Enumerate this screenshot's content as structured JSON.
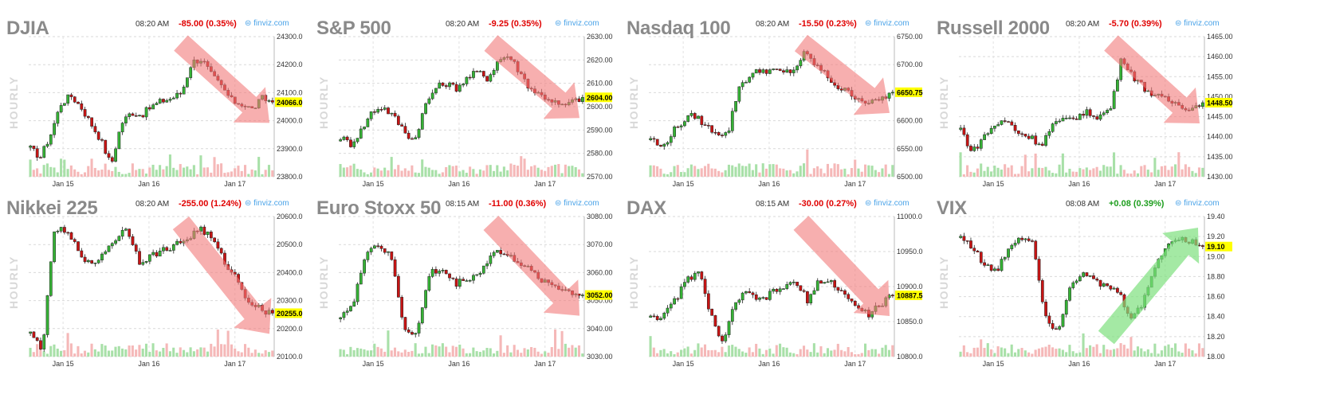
{
  "colors": {
    "up": "#35b235",
    "down": "#c81414",
    "down_arrow": "#f27a7a",
    "up_arrow": "#7ee07e",
    "last_highlight": "#ffff00",
    "change_down": "#e00000",
    "change_up": "#1e9e1e",
    "brand": "#4aa3e8"
  },
  "brand": "finviz.com",
  "vertical_label": "HOURLY",
  "charts": [
    {
      "title": "DJIA",
      "time": "08:20 AM",
      "change": "-85.00 (0.35%)",
      "direction": "down",
      "last": "24066.0",
      "chart_data": {
        "type": "candlestick",
        "x_labels": [
          "Jan 15",
          "Jan 16",
          "Jan 17"
        ],
        "y_ticks": [
          "24300.0",
          "24200.0",
          "24100.0",
          "24000.0",
          "23900.0",
          "23800.0"
        ],
        "ylim": [
          23800,
          24300
        ],
        "last_value": 24066,
        "trend_arrow": "down",
        "close_path": [
          23900,
          23870,
          23950,
          24060,
          24090,
          24050,
          23990,
          23930,
          23840,
          23990,
          24030,
          24020,
          24050,
          24070,
          24080,
          24100,
          24210,
          24220,
          24160,
          24120,
          24070,
          24060,
          24040,
          24080,
          24066
        ]
      }
    },
    {
      "title": "S&P 500",
      "time": "08:20 AM",
      "change": "-9.25 (0.35%)",
      "direction": "down",
      "last": "2604.00",
      "chart_data": {
        "type": "candlestick",
        "x_labels": [
          "Jan 15",
          "Jan 16",
          "Jan 17"
        ],
        "y_ticks": [
          "2630.00",
          "2620.00",
          "2610.00",
          "2600.00",
          "2590.00",
          "2580.00",
          "2570.00"
        ],
        "ylim": [
          2570,
          2630
        ],
        "last_value": 2604,
        "trend_arrow": "down",
        "close_path": [
          2587,
          2584,
          2590,
          2598,
          2600,
          2596,
          2590,
          2585,
          2600,
          2608,
          2610,
          2608,
          2612,
          2615,
          2612,
          2620,
          2622,
          2615,
          2608,
          2605,
          2603,
          2600,
          2602,
          2604
        ]
      }
    },
    {
      "title": "Nasdaq 100",
      "time": "08:20 AM",
      "change": "-15.50 (0.23%)",
      "direction": "down",
      "last": "6650.75",
      "chart_data": {
        "type": "candlestick",
        "x_labels": [
          "Jan 15",
          "Jan 16",
          "Jan 17"
        ],
        "y_ticks": [
          "6750.00",
          "6700.00",
          "6650.00",
          "6600.00",
          "6550.00",
          "6500.00"
        ],
        "ylim": [
          6500,
          6750
        ],
        "last_value": 6650.75,
        "trend_arrow": "down",
        "close_path": [
          6570,
          6550,
          6580,
          6600,
          6610,
          6590,
          6580,
          6575,
          6660,
          6680,
          6690,
          6690,
          6685,
          6690,
          6720,
          6700,
          6680,
          6660,
          6650,
          6640,
          6630,
          6640,
          6650.75
        ]
      }
    },
    {
      "title": "Russell 2000",
      "time": "08:20 AM",
      "change": "-5.70 (0.39%)",
      "direction": "down",
      "last": "1448.50",
      "chart_data": {
        "type": "candlestick",
        "x_labels": [
          "Jan 15",
          "Jan 16",
          "Jan 17"
        ],
        "y_ticks": [
          "1465.00",
          "1460.00",
          "1455.00",
          "1450.00",
          "1445.00",
          "1440.00",
          "1435.00",
          "1430.00"
        ],
        "ylim": [
          1430,
          1465
        ],
        "last_value": 1448.5,
        "trend_arrow": "down",
        "close_path": [
          1442,
          1436,
          1440,
          1443,
          1444,
          1441,
          1440,
          1438,
          1443,
          1444,
          1445,
          1446,
          1445,
          1447,
          1460,
          1455,
          1452,
          1450,
          1449,
          1448,
          1447,
          1448.5
        ]
      }
    },
    {
      "title": "Nikkei 225",
      "time": "08:20 AM",
      "change": "-255.00 (1.24%)",
      "direction": "down",
      "last": "20255.0",
      "chart_data": {
        "type": "candlestick",
        "x_labels": [
          "Jan 15",
          "Jan 16",
          "Jan 17"
        ],
        "y_ticks": [
          "20600.0",
          "20500.0",
          "20400.0",
          "20300.0",
          "20200.0",
          "20100.0"
        ],
        "ylim": [
          20100,
          20600
        ],
        "last_value": 20255,
        "trend_arrow": "down",
        "close_path": [
          20180,
          20130,
          20560,
          20540,
          20480,
          20420,
          20470,
          20520,
          20560,
          20440,
          20460,
          20480,
          20500,
          20520,
          20560,
          20520,
          20440,
          20380,
          20300,
          20270,
          20255
        ]
      }
    },
    {
      "title": "Euro Stoxx 50",
      "time": "08:15 AM",
      "change": "-11.00 (0.36%)",
      "direction": "down",
      "last": "3052.00",
      "chart_data": {
        "type": "candlestick",
        "x_labels": [
          "Jan 15",
          "Jan 16",
          "Jan 17"
        ],
        "y_ticks": [
          "3080.00",
          "3070.00",
          "3060.00",
          "3050.00",
          "3040.00",
          "3030.00"
        ],
        "ylim": [
          3030,
          3080
        ],
        "last_value": 3052,
        "trend_arrow": "down",
        "close_path": [
          3045,
          3048,
          3068,
          3070,
          3065,
          3040,
          3038,
          3060,
          3061,
          3056,
          3058,
          3060,
          3068,
          3066,
          3064,
          3060,
          3057,
          3055,
          3053,
          3052
        ]
      }
    },
    {
      "title": "DAX",
      "time": "08:15 AM",
      "change": "-30.00 (0.27%)",
      "direction": "down",
      "last": "10887.5",
      "chart_data": {
        "type": "candlestick",
        "x_labels": [
          "Jan 15",
          "Jan 16",
          "Jan 17"
        ],
        "y_ticks": [
          "11000.0",
          "10950.0",
          "10900.0",
          "10850.0",
          "10800.0"
        ],
        "ylim": [
          10800,
          11000
        ],
        "last_value": 10887.5,
        "trend_arrow": "down",
        "close_path": [
          10860,
          10855,
          10880,
          10910,
          10920,
          10860,
          10815,
          10880,
          10890,
          10880,
          10890,
          10900,
          10905,
          10880,
          10910,
          10905,
          10890,
          10870,
          10860,
          10875,
          10887.5
        ]
      }
    },
    {
      "title": "VIX",
      "time": "08:08 AM",
      "change": "+0.08 (0.39%)",
      "direction": "up",
      "last": "19.10",
      "chart_data": {
        "type": "candlestick",
        "x_labels": [
          "Jan 15",
          "Jan 16",
          "Jan 17"
        ],
        "y_ticks": [
          "19.40",
          "19.20",
          "19.00",
          "18.80",
          "18.60",
          "18.40",
          "18.20",
          "18.00"
        ],
        "ylim": [
          18.0,
          19.4
        ],
        "last_value": 19.1,
        "trend_arrow": "up",
        "close_path": [
          19.2,
          19.1,
          18.9,
          18.85,
          19.1,
          19.2,
          19.15,
          18.4,
          18.25,
          18.7,
          18.85,
          18.75,
          18.7,
          18.65,
          18.4,
          18.5,
          18.9,
          19.1,
          19.2,
          19.15,
          19.1
        ]
      }
    }
  ]
}
